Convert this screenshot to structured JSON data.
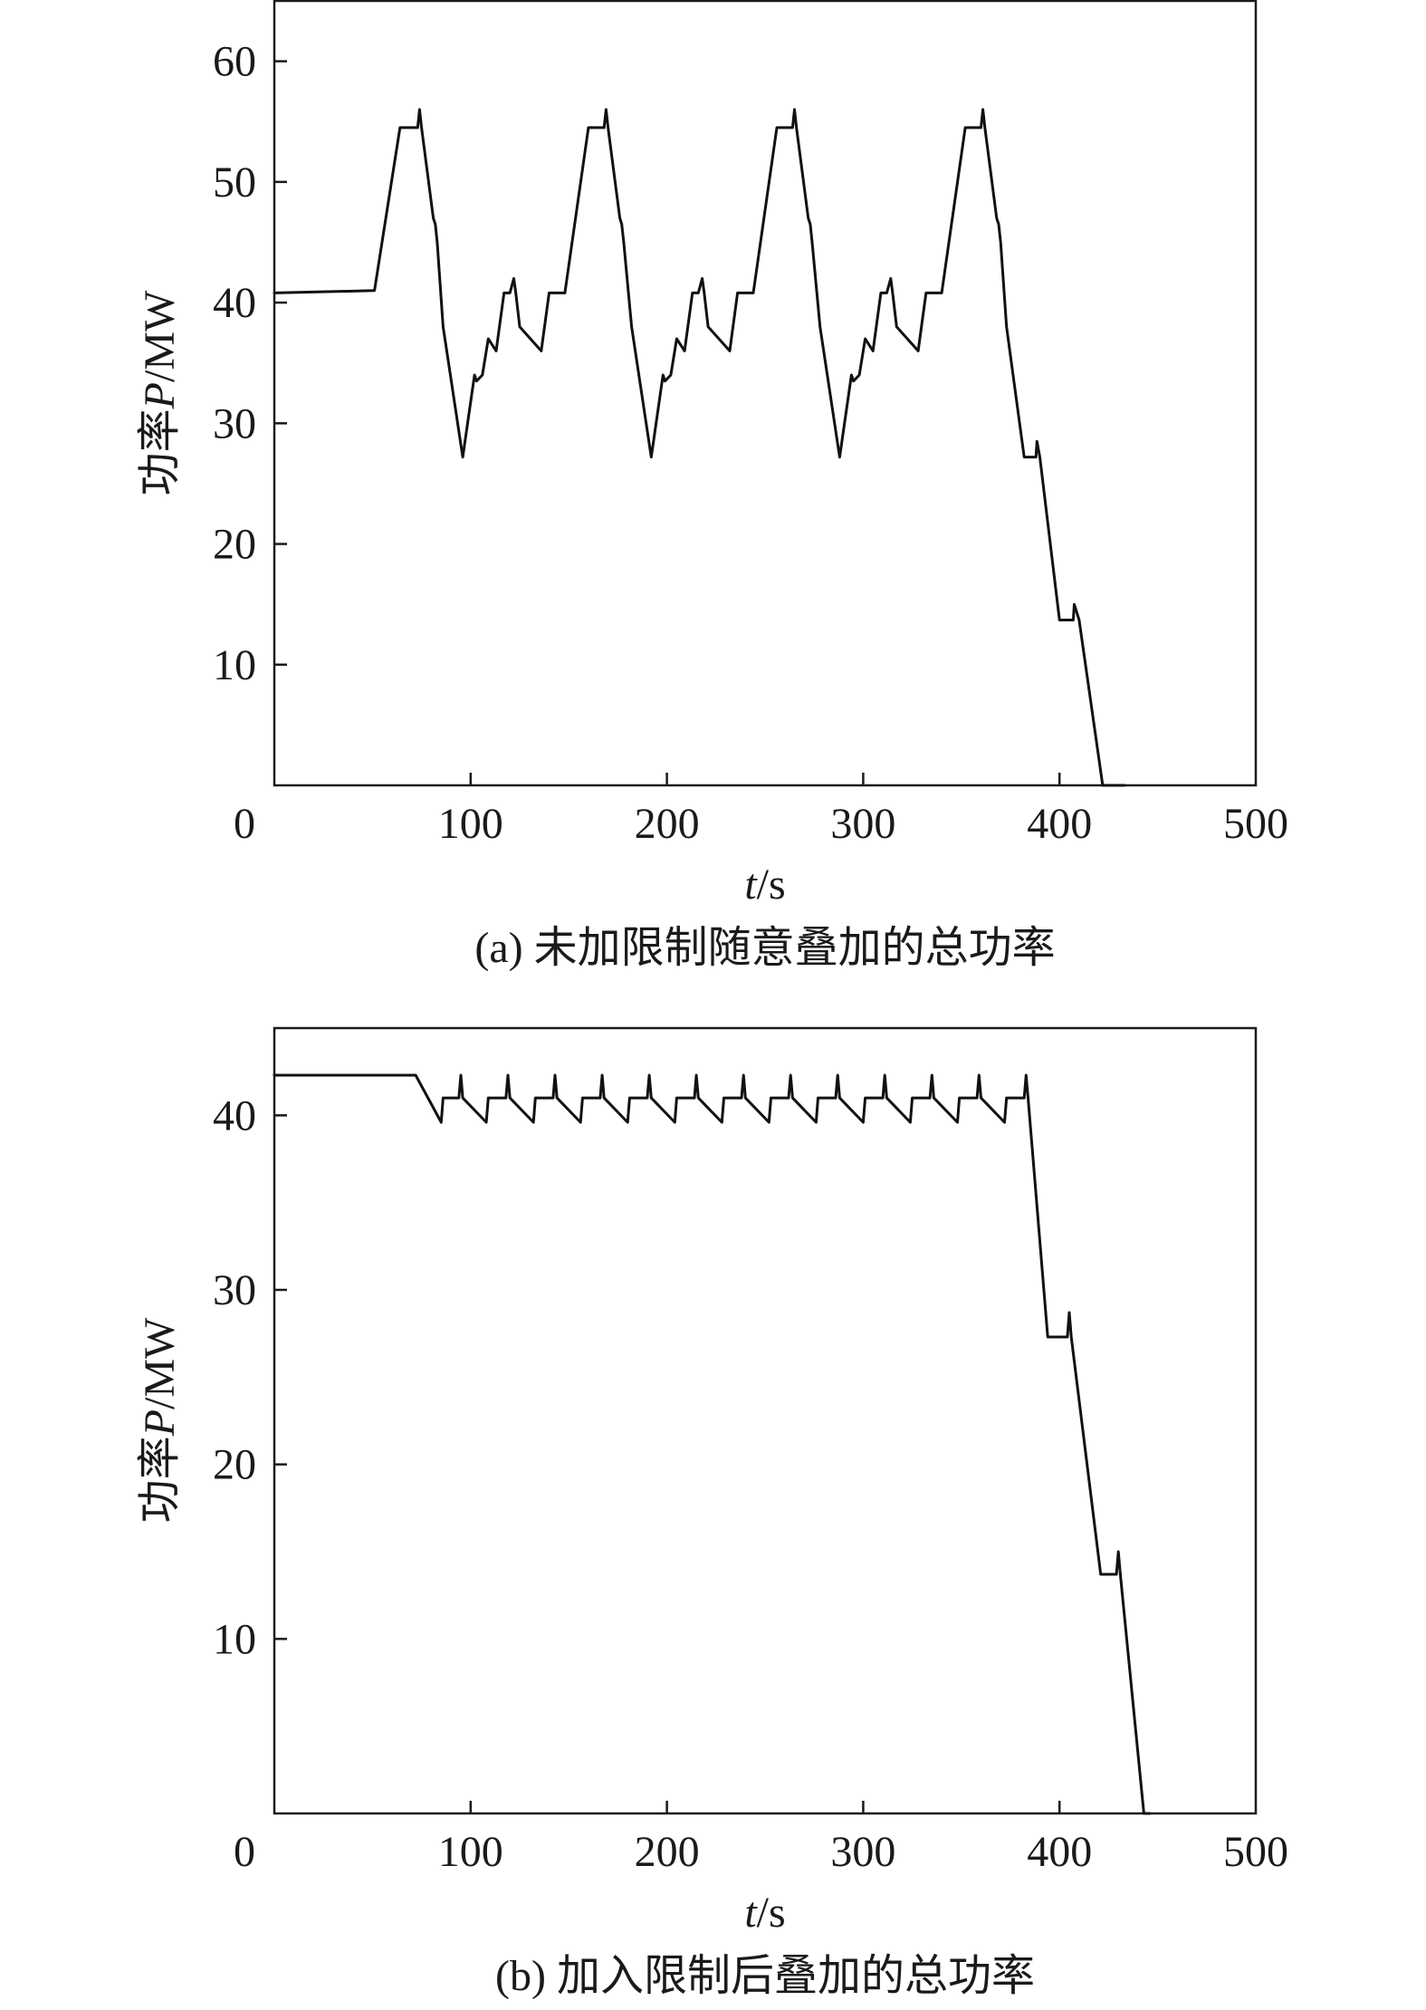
{
  "chart_data": [
    {
      "type": "line",
      "caption": "(a) 未加限制随意叠加的总功率",
      "xlabel_italic": "t",
      "xlabel_unit": "/s",
      "ylabel_prefix": "功率",
      "ylabel_italic": "P",
      "ylabel_unit": "/MW",
      "xlim": [
        0,
        500
      ],
      "ylim": [
        0,
        65
      ],
      "x_ticks": [
        0,
        100,
        200,
        300,
        400,
        500
      ],
      "y_ticks": [
        10,
        20,
        30,
        40,
        50,
        60
      ],
      "origin_label": "0",
      "grid": false,
      "series": [
        {
          "x": [
            0,
            51,
            64,
            66,
            73,
            74,
            75,
            81,
            82,
            83,
            86,
            96,
            102,
            103,
            106,
            109,
            113,
            117,
            120,
            122,
            123,
            125,
            136,
            140,
            142,
            148,
            160,
            162,
            168,
            169,
            170,
            176,
            177,
            178,
            182,
            192,
            198,
            199,
            202,
            205,
            209,
            213,
            216,
            218,
            219,
            221,
            232,
            236,
            238,
            244,
            256,
            258,
            264,
            265,
            266,
            272,
            273,
            274,
            278,
            288,
            294,
            295,
            298,
            301,
            305,
            309,
            312,
            314,
            315,
            317,
            328,
            332,
            334,
            340,
            352,
            354,
            360,
            361,
            362,
            368,
            369,
            370,
            373,
            382,
            388,
            388.5,
            390,
            400,
            402,
            407,
            407.5,
            410,
            422,
            433
          ],
          "y": [
            40.8,
            41,
            54.5,
            54.5,
            54.5,
            56,
            54.5,
            47,
            46.5,
            45,
            38,
            27.2,
            34,
            33.5,
            34,
            37,
            36,
            40.8,
            40.8,
            42,
            40.8,
            38,
            36,
            40.8,
            40.8,
            40.8,
            54.5,
            54.5,
            54.5,
            56,
            54.5,
            47,
            46.5,
            45,
            38,
            27.2,
            34,
            33.5,
            34,
            37,
            36,
            40.8,
            40.8,
            42,
            40.8,
            38,
            36,
            40.8,
            40.8,
            40.8,
            54.5,
            54.5,
            54.5,
            56,
            54.5,
            47,
            46.5,
            45,
            38,
            27.2,
            34,
            33.5,
            34,
            37,
            36,
            40.8,
            40.8,
            42,
            40.8,
            38,
            36,
            40.8,
            40.8,
            40.8,
            54.5,
            54.5,
            54.5,
            56,
            54.5,
            47,
            46.5,
            45,
            38,
            27.2,
            27.2,
            28.5,
            27.2,
            13.7,
            13.7,
            13.7,
            15,
            13.7,
            0,
            0
          ]
        }
      ]
    },
    {
      "type": "line",
      "caption": "(b) 加入限制后叠加的总功率",
      "xlabel_italic": "t",
      "xlabel_unit": "/s",
      "ylabel_prefix": "功率",
      "ylabel_italic": "P",
      "ylabel_unit": "/MW",
      "xlim": [
        0,
        500
      ],
      "ylim": [
        0,
        45
      ],
      "x_ticks": [
        0,
        100,
        200,
        300,
        400,
        500
      ],
      "y_ticks": [
        10,
        20,
        30,
        40
      ],
      "origin_label": "0",
      "grid": false,
      "series": [
        {
          "x": [
            0,
            72,
            85,
            86,
            94,
            95,
            96,
            108,
            109,
            110,
            118,
            119,
            120,
            132,
            133,
            134,
            142,
            143,
            144,
            156,
            157,
            158,
            166,
            167,
            168,
            180,
            181,
            182,
            190,
            191,
            192,
            204,
            205,
            206,
            214,
            215,
            216,
            228,
            229,
            230,
            238,
            239,
            240,
            252,
            253,
            254,
            262,
            263,
            264,
            276,
            277,
            278,
            286,
            287,
            288,
            300,
            301,
            302,
            310,
            311,
            312,
            324,
            325,
            326,
            334,
            335,
            336,
            348,
            349,
            350,
            358,
            359,
            360,
            372,
            373,
            374,
            382,
            383,
            384,
            394,
            404,
            405,
            406,
            421,
            429,
            430,
            431,
            443,
            446
          ],
          "y": [
            42.3,
            42.3,
            39.6,
            41,
            41,
            42.3,
            41,
            39.6,
            41,
            41,
            41,
            42.3,
            41,
            39.6,
            41,
            41,
            41,
            42.3,
            41,
            39.6,
            41,
            41,
            41,
            42.3,
            41,
            39.6,
            41,
            41,
            41,
            42.3,
            41,
            39.6,
            41,
            41,
            41,
            42.3,
            41,
            39.6,
            41,
            41,
            41,
            42.3,
            41,
            39.6,
            41,
            41,
            41,
            42.3,
            41,
            39.6,
            41,
            41,
            41,
            42.3,
            41,
            39.6,
            41,
            41,
            41,
            42.3,
            41,
            39.6,
            41,
            41,
            41,
            42.3,
            41,
            39.6,
            41,
            41,
            41,
            42.3,
            41,
            39.6,
            41,
            41,
            41,
            42.3,
            41,
            27.3,
            27.3,
            28.7,
            27.3,
            13.7,
            13.7,
            15,
            13.7,
            0,
            0
          ]
        }
      ]
    }
  ]
}
